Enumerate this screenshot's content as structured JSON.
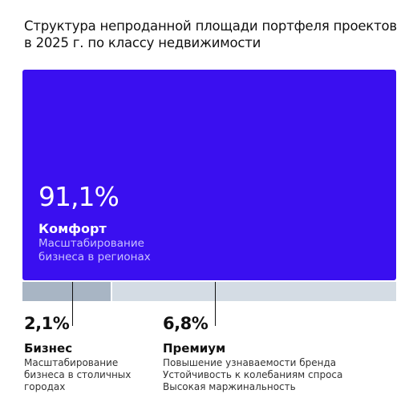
{
  "chart_data": {
    "type": "treemap",
    "title": "Структура непроданной площади портфеля проектов в 2025 г. по классу недвижимости",
    "unit": "%",
    "categories": [
      {
        "name": "Комфорт",
        "value": 91.1,
        "label": "91,1%",
        "description": [
          "Масштабирование",
          "бизнеса в регионах"
        ],
        "color": "#3a0ff0"
      },
      {
        "name": "Бизнес",
        "value": 2.1,
        "label": "2,1%",
        "description": [
          "Масштабирование",
          "бизнеса в столичных",
          "городах"
        ],
        "color": "#a8b5c4"
      },
      {
        "name": "Премиум",
        "value": 6.8,
        "label": "6,8%",
        "description": [
          "Повышение узнаваемости бренда",
          "Устойчивость к колебаниям спроса",
          "Высокая маржинальность"
        ],
        "color": "#d4dce4"
      }
    ]
  }
}
